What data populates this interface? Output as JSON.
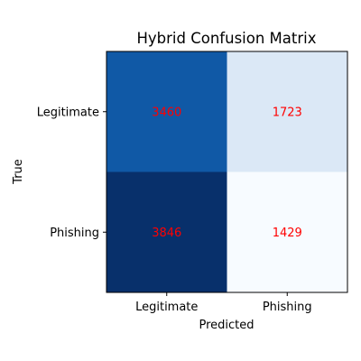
{
  "chart_data": {
    "type": "heatmap",
    "title": "Hybrid Confusion Matrix",
    "xlabel": "Predicted",
    "ylabel": "True",
    "x_categories": [
      "Legitimate",
      "Phishing"
    ],
    "y_categories": [
      "Legitimate",
      "Phishing"
    ],
    "values": [
      [
        3460,
        1723
      ],
      [
        3846,
        1429
      ]
    ],
    "colormap": "Blues",
    "value_label_color": "#ff0000",
    "cell_colors": [
      [
        "#1059a6",
        "#dbe8f6"
      ],
      [
        "#08306b",
        "#f7fbff"
      ]
    ],
    "grid": false,
    "colorbar": false
  }
}
